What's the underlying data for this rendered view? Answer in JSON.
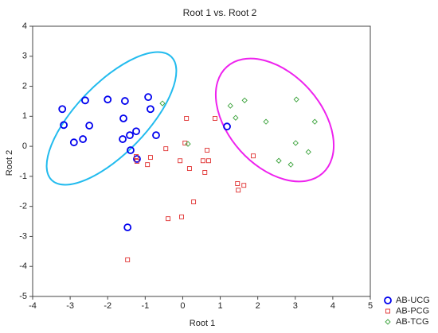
{
  "chart_data": {
    "type": "scatter",
    "title": "Root 1 vs. Root 2",
    "xlabel": "Root 1",
    "ylabel": "Root 2",
    "xlim": [
      -4,
      5
    ],
    "ylim": [
      -5,
      4
    ],
    "xticks": [
      -4,
      -3,
      -2,
      -1,
      0,
      1,
      2,
      3,
      4,
      5
    ],
    "yticks": [
      -5,
      -4,
      -3,
      -2,
      -1,
      0,
      1,
      2,
      3,
      4
    ],
    "grid": false,
    "legend": "bottom-right",
    "series": [
      {
        "name": "AB-UCG",
        "color": "#0000ee",
        "marker": "circle",
        "x": [
          -3.21,
          -3.17,
          -2.9,
          -2.66,
          -2.49,
          -2.6,
          -2.0,
          -1.54,
          -1.58,
          -1.41,
          -1.6,
          -1.39,
          -1.24,
          -1.22,
          -0.92,
          -0.86,
          -0.71,
          -1.47,
          1.18
        ],
        "y": [
          1.24,
          0.71,
          0.13,
          0.24,
          0.69,
          1.53,
          1.56,
          1.51,
          0.93,
          0.37,
          0.24,
          -0.13,
          0.5,
          -0.42,
          1.64,
          1.24,
          0.37,
          -2.7,
          0.66
        ]
      },
      {
        "name": "AB-PCG",
        "color": "#e03030",
        "marker": "square",
        "x": [
          -1.24,
          -1.22,
          -0.86,
          -0.94,
          -0.45,
          -0.07,
          0.1,
          0.06,
          0.18,
          0.54,
          0.59,
          0.65,
          0.69,
          0.86,
          0.29,
          -0.39,
          -0.03,
          -1.47,
          1.46,
          1.48,
          1.63,
          1.88
        ],
        "y": [
          -0.34,
          -0.5,
          -0.37,
          -0.61,
          -0.08,
          -0.48,
          0.93,
          0.11,
          -0.74,
          -0.48,
          -0.87,
          -0.13,
          -0.48,
          0.93,
          -1.85,
          -2.41,
          -2.35,
          -3.78,
          -1.24,
          -1.46,
          -1.3,
          -0.32
        ]
      },
      {
        "name": "AB-TCG",
        "color": "#3aa23a",
        "marker": "diamond",
        "x": [
          -0.54,
          0.14,
          1.27,
          1.41,
          1.65,
          2.22,
          2.56,
          2.88,
          3.03,
          3.01,
          3.35,
          3.52
        ],
        "y": [
          1.43,
          0.08,
          1.35,
          0.95,
          1.53,
          0.82,
          -0.48,
          -0.61,
          1.56,
          0.11,
          -0.19,
          0.82
        ]
      }
    ]
  }
}
